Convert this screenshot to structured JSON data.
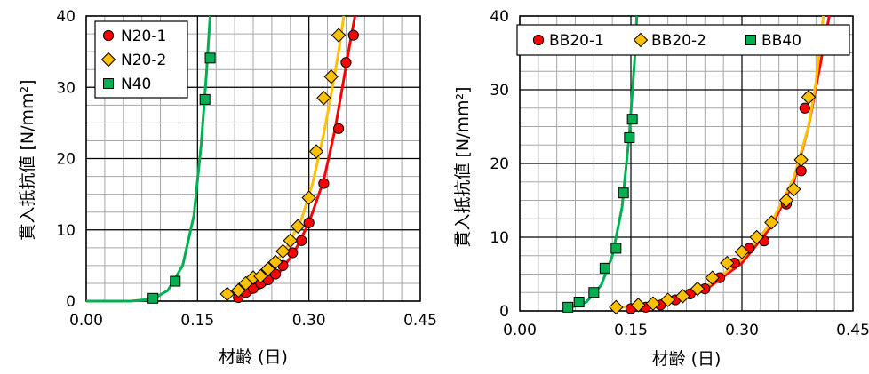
{
  "chart_data": [
    {
      "type": "scatter",
      "xlabel": "材齢 (日)",
      "ylabel": "貫入抵抗値",
      "ylabel_unit": "[N/mm²]",
      "xlim": [
        0,
        0.45
      ],
      "ylim": [
        0,
        40
      ],
      "xticks": [
        "0.00",
        "0.15",
        "0.30",
        "0.45"
      ],
      "yticks": [
        "0",
        "10",
        "20",
        "30",
        "40"
      ],
      "grid": true,
      "legend_position": "top-left",
      "series": [
        {
          "name": "N20-1",
          "color": "#ff0000",
          "marker": "circle",
          "points": [
            [
              0.205,
              0.5
            ],
            [
              0.215,
              1.2
            ],
            [
              0.225,
              1.8
            ],
            [
              0.235,
              2.5
            ],
            [
              0.245,
              3.0
            ],
            [
              0.255,
              3.8
            ],
            [
              0.265,
              5.0
            ],
            [
              0.278,
              6.8
            ],
            [
              0.29,
              8.5
            ],
            [
              0.3,
              11.0
            ],
            [
              0.32,
              16.5
            ],
            [
              0.34,
              24.2
            ],
            [
              0.35,
              33.5
            ],
            [
              0.36,
              37.3
            ]
          ],
          "curve": [
            [
              0.205,
              0.3
            ],
            [
              0.22,
              1.0
            ],
            [
              0.24,
              2.2
            ],
            [
              0.26,
              4.0
            ],
            [
              0.28,
              6.8
            ],
            [
              0.3,
              11.0
            ],
            [
              0.32,
              17.0
            ],
            [
              0.335,
              24.0
            ],
            [
              0.345,
              30.0
            ],
            [
              0.355,
              36.0
            ],
            [
              0.362,
              40.0
            ]
          ]
        },
        {
          "name": "N20-2",
          "color": "#ffc000",
          "marker": "diamond",
          "points": [
            [
              0.19,
              1.0
            ],
            [
              0.205,
              1.5
            ],
            [
              0.215,
              2.5
            ],
            [
              0.225,
              3.3
            ],
            [
              0.235,
              3.5
            ],
            [
              0.245,
              4.5
            ],
            [
              0.255,
              5.5
            ],
            [
              0.265,
              7.0
            ],
            [
              0.275,
              8.5
            ],
            [
              0.285,
              10.5
            ],
            [
              0.3,
              14.5
            ],
            [
              0.31,
              21.0
            ],
            [
              0.32,
              28.5
            ],
            [
              0.33,
              31.5
            ],
            [
              0.34,
              37.3
            ]
          ],
          "curve": [
            [
              0.19,
              0.8
            ],
            [
              0.21,
              1.8
            ],
            [
              0.23,
              3.0
            ],
            [
              0.25,
              4.8
            ],
            [
              0.27,
              7.5
            ],
            [
              0.29,
              11.5
            ],
            [
              0.305,
              16.5
            ],
            [
              0.32,
              23.5
            ],
            [
              0.33,
              29.0
            ],
            [
              0.34,
              35.0
            ],
            [
              0.347,
              40.0
            ]
          ]
        },
        {
          "name": "N40",
          "color": "#00b050",
          "marker": "square",
          "points": [
            [
              0.09,
              0.4
            ],
            [
              0.12,
              2.8
            ],
            [
              0.16,
              28.3
            ],
            [
              0.167,
              34.1
            ]
          ],
          "curve": [
            [
              0.0,
              0.0
            ],
            [
              0.06,
              0.0
            ],
            [
              0.09,
              0.3
            ],
            [
              0.11,
              1.5
            ],
            [
              0.13,
              5.0
            ],
            [
              0.145,
              12.0
            ],
            [
              0.155,
              22.0
            ],
            [
              0.162,
              32.0
            ],
            [
              0.167,
              40.0
            ]
          ]
        }
      ]
    },
    {
      "type": "scatter",
      "xlabel": "材齢 (日)",
      "ylabel": "貫入抵抗値",
      "ylabel_unit": "[N/mm²]",
      "xlim": [
        0,
        0.45
      ],
      "ylim": [
        0,
        40
      ],
      "xticks": [
        "0.00",
        "0.15",
        "0.30",
        "0.45"
      ],
      "yticks": [
        "0",
        "10",
        "20",
        "30",
        "40"
      ],
      "grid": true,
      "legend_position": "top",
      "series": [
        {
          "name": "BB20-1",
          "color": "#ff0000",
          "marker": "circle",
          "points": [
            [
              0.15,
              0.3
            ],
            [
              0.17,
              0.5
            ],
            [
              0.19,
              0.8
            ],
            [
              0.21,
              1.5
            ],
            [
              0.23,
              2.3
            ],
            [
              0.25,
              3.0
            ],
            [
              0.27,
              4.5
            ],
            [
              0.29,
              6.5
            ],
            [
              0.31,
              8.5
            ],
            [
              0.33,
              9.5
            ],
            [
              0.36,
              14.5
            ],
            [
              0.38,
              19.0
            ],
            [
              0.385,
              27.5
            ],
            [
              0.39,
              29.0
            ]
          ],
          "curve": [
            [
              0.15,
              0.3
            ],
            [
              0.2,
              1.0
            ],
            [
              0.25,
              2.8
            ],
            [
              0.3,
              6.5
            ],
            [
              0.34,
              11.5
            ],
            [
              0.37,
              17.5
            ],
            [
              0.39,
              25.0
            ],
            [
              0.405,
              33.0
            ],
            [
              0.418,
              40.0
            ]
          ]
        },
        {
          "name": "BB20-2",
          "color": "#ffc000",
          "marker": "diamond",
          "points": [
            [
              0.13,
              0.5
            ],
            [
              0.16,
              0.8
            ],
            [
              0.18,
              1.0
            ],
            [
              0.2,
              1.5
            ],
            [
              0.22,
              2.0
            ],
            [
              0.24,
              3.0
            ],
            [
              0.26,
              4.5
            ],
            [
              0.28,
              6.5
            ],
            [
              0.3,
              8.0
            ],
            [
              0.32,
              10.0
            ],
            [
              0.34,
              12.0
            ],
            [
              0.36,
              15.0
            ],
            [
              0.37,
              16.5
            ],
            [
              0.38,
              20.5
            ],
            [
              0.39,
              29.0
            ]
          ],
          "curve": [
            [
              0.13,
              0.4
            ],
            [
              0.18,
              0.9
            ],
            [
              0.22,
              1.8
            ],
            [
              0.26,
              3.8
            ],
            [
              0.3,
              7.0
            ],
            [
              0.34,
              12.0
            ],
            [
              0.37,
              18.0
            ],
            [
              0.39,
              25.0
            ],
            [
              0.4,
              31.0
            ],
            [
              0.41,
              40.0
            ]
          ]
        },
        {
          "name": "BB40",
          "color": "#00b050",
          "marker": "square",
          "points": [
            [
              0.065,
              0.5
            ],
            [
              0.08,
              1.2
            ],
            [
              0.1,
              2.5
            ],
            [
              0.115,
              5.8
            ],
            [
              0.13,
              8.5
            ],
            [
              0.14,
              16.0
            ],
            [
              0.148,
              23.5
            ],
            [
              0.152,
              26.0
            ]
          ],
          "curve": [
            [
              0.065,
              0.3
            ],
            [
              0.09,
              1.2
            ],
            [
              0.11,
              3.5
            ],
            [
              0.125,
              7.5
            ],
            [
              0.138,
              14.0
            ],
            [
              0.148,
              24.0
            ],
            [
              0.155,
              34.0
            ],
            [
              0.158,
              40.0
            ]
          ]
        }
      ]
    }
  ]
}
